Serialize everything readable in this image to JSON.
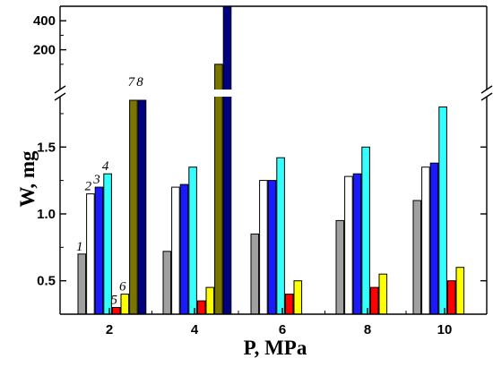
{
  "chart_data": {
    "type": "bar",
    "xlabel": "P, MPa",
    "ylabel": "W, mg",
    "categories": [
      "2",
      "4",
      "6",
      "8",
      "10"
    ],
    "axis_break": {
      "lower_range": [
        0.25,
        1.85
      ],
      "upper_range": [
        0,
        500
      ],
      "lower_ticks": [
        0.5,
        1.0,
        1.5
      ],
      "lower_tick_labels": [
        "0.5",
        "1.0",
        "1.5"
      ],
      "upper_ticks": [
        200,
        400
      ],
      "upper_tick_labels": [
        "200",
        "400"
      ]
    },
    "grid": false,
    "legend": "none",
    "series": [
      {
        "label": "1",
        "color": "#a0a0a0",
        "values": [
          0.7,
          0.72,
          0.85,
          0.95,
          1.1
        ]
      },
      {
        "label": "2",
        "color": "#ffffff",
        "values": [
          1.15,
          1.2,
          1.25,
          1.28,
          1.35
        ]
      },
      {
        "label": "3",
        "color": "#1a1aff",
        "values": [
          1.2,
          1.22,
          1.25,
          1.3,
          1.38
        ]
      },
      {
        "label": "4",
        "color": "#33ffff",
        "values": [
          1.3,
          1.35,
          1.42,
          1.5,
          1.8
        ]
      },
      {
        "label": "5",
        "color": "#ff0000",
        "values": [
          0.3,
          0.35,
          0.4,
          0.45,
          0.5
        ]
      },
      {
        "label": "6",
        "color": "#ffff00",
        "values": [
          0.4,
          0.45,
          0.5,
          0.55,
          0.6
        ]
      },
      {
        "label": "7",
        "color": "#7a7400",
        "values": [
          1.85,
          100,
          null,
          null,
          null
        ]
      },
      {
        "label": "8",
        "color": "#000080",
        "values": [
          1.85,
          500,
          null,
          null,
          null
        ]
      }
    ]
  }
}
